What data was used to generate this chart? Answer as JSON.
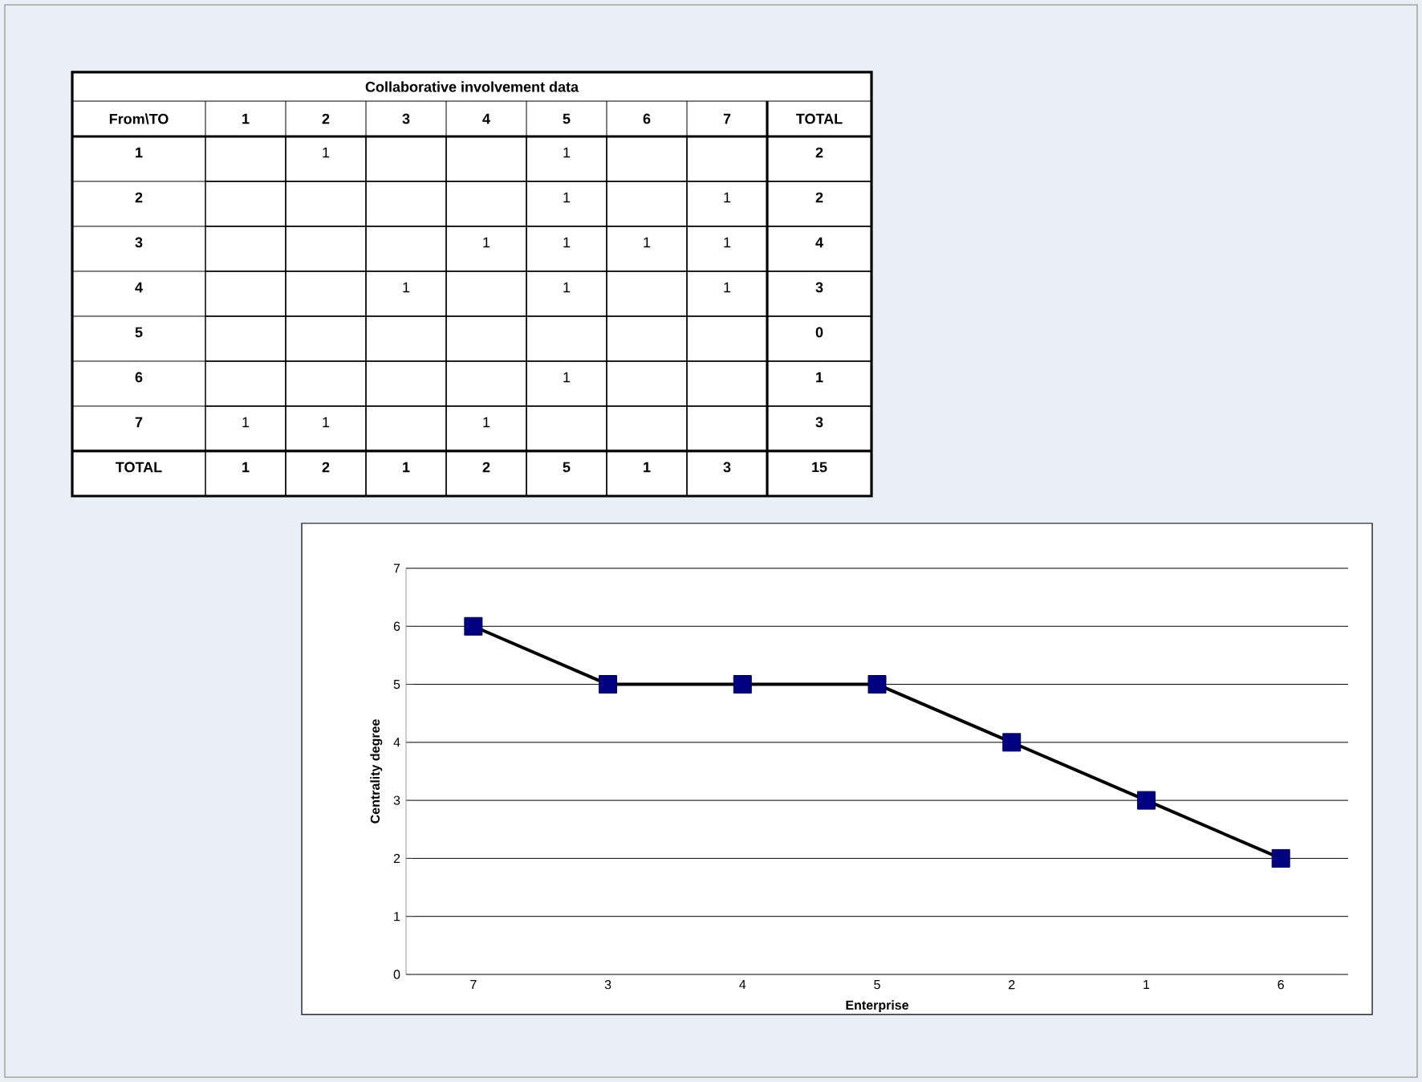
{
  "chart_data": [
    {
      "type": "heatmap",
      "title": "Collaborative involvement data",
      "xlabel": "From\\TO",
      "categories": [
        "1",
        "2",
        "3",
        "4",
        "5",
        "6",
        "7",
        "TOTAL"
      ],
      "y_categories": [
        "1",
        "2",
        "3",
        "4",
        "5",
        "6",
        "7",
        "TOTAL"
      ],
      "cells": [
        [
          null,
          1,
          null,
          null,
          1,
          null,
          null,
          2
        ],
        [
          null,
          null,
          null,
          null,
          1,
          null,
          1,
          2
        ],
        [
          null,
          null,
          null,
          1,
          1,
          1,
          1,
          4
        ],
        [
          null,
          null,
          1,
          null,
          1,
          null,
          1,
          3
        ],
        [
          null,
          null,
          null,
          null,
          null,
          null,
          null,
          0
        ],
        [
          null,
          null,
          null,
          null,
          1,
          null,
          null,
          1
        ],
        [
          1,
          1,
          null,
          1,
          null,
          null,
          null,
          3
        ],
        [
          1,
          2,
          1,
          2,
          5,
          1,
          3,
          15
        ]
      ],
      "data_labels": true
    },
    {
      "type": "line",
      "xlabel": "Enterprise",
      "ylabel": "Centrality degree",
      "categories": [
        "7",
        "3",
        "4",
        "5",
        "2",
        "1",
        "6"
      ],
      "series": [
        {
          "color": "#000000",
          "values": [
            6,
            5,
            5,
            5,
            4,
            3,
            2
          ]
        }
      ],
      "ylim": [
        0,
        7
      ],
      "yticks": [
        0,
        1,
        2,
        3,
        4,
        5,
        6,
        7
      ],
      "grid": "y",
      "marker": "square",
      "line_style": "solid"
    }
  ]
}
